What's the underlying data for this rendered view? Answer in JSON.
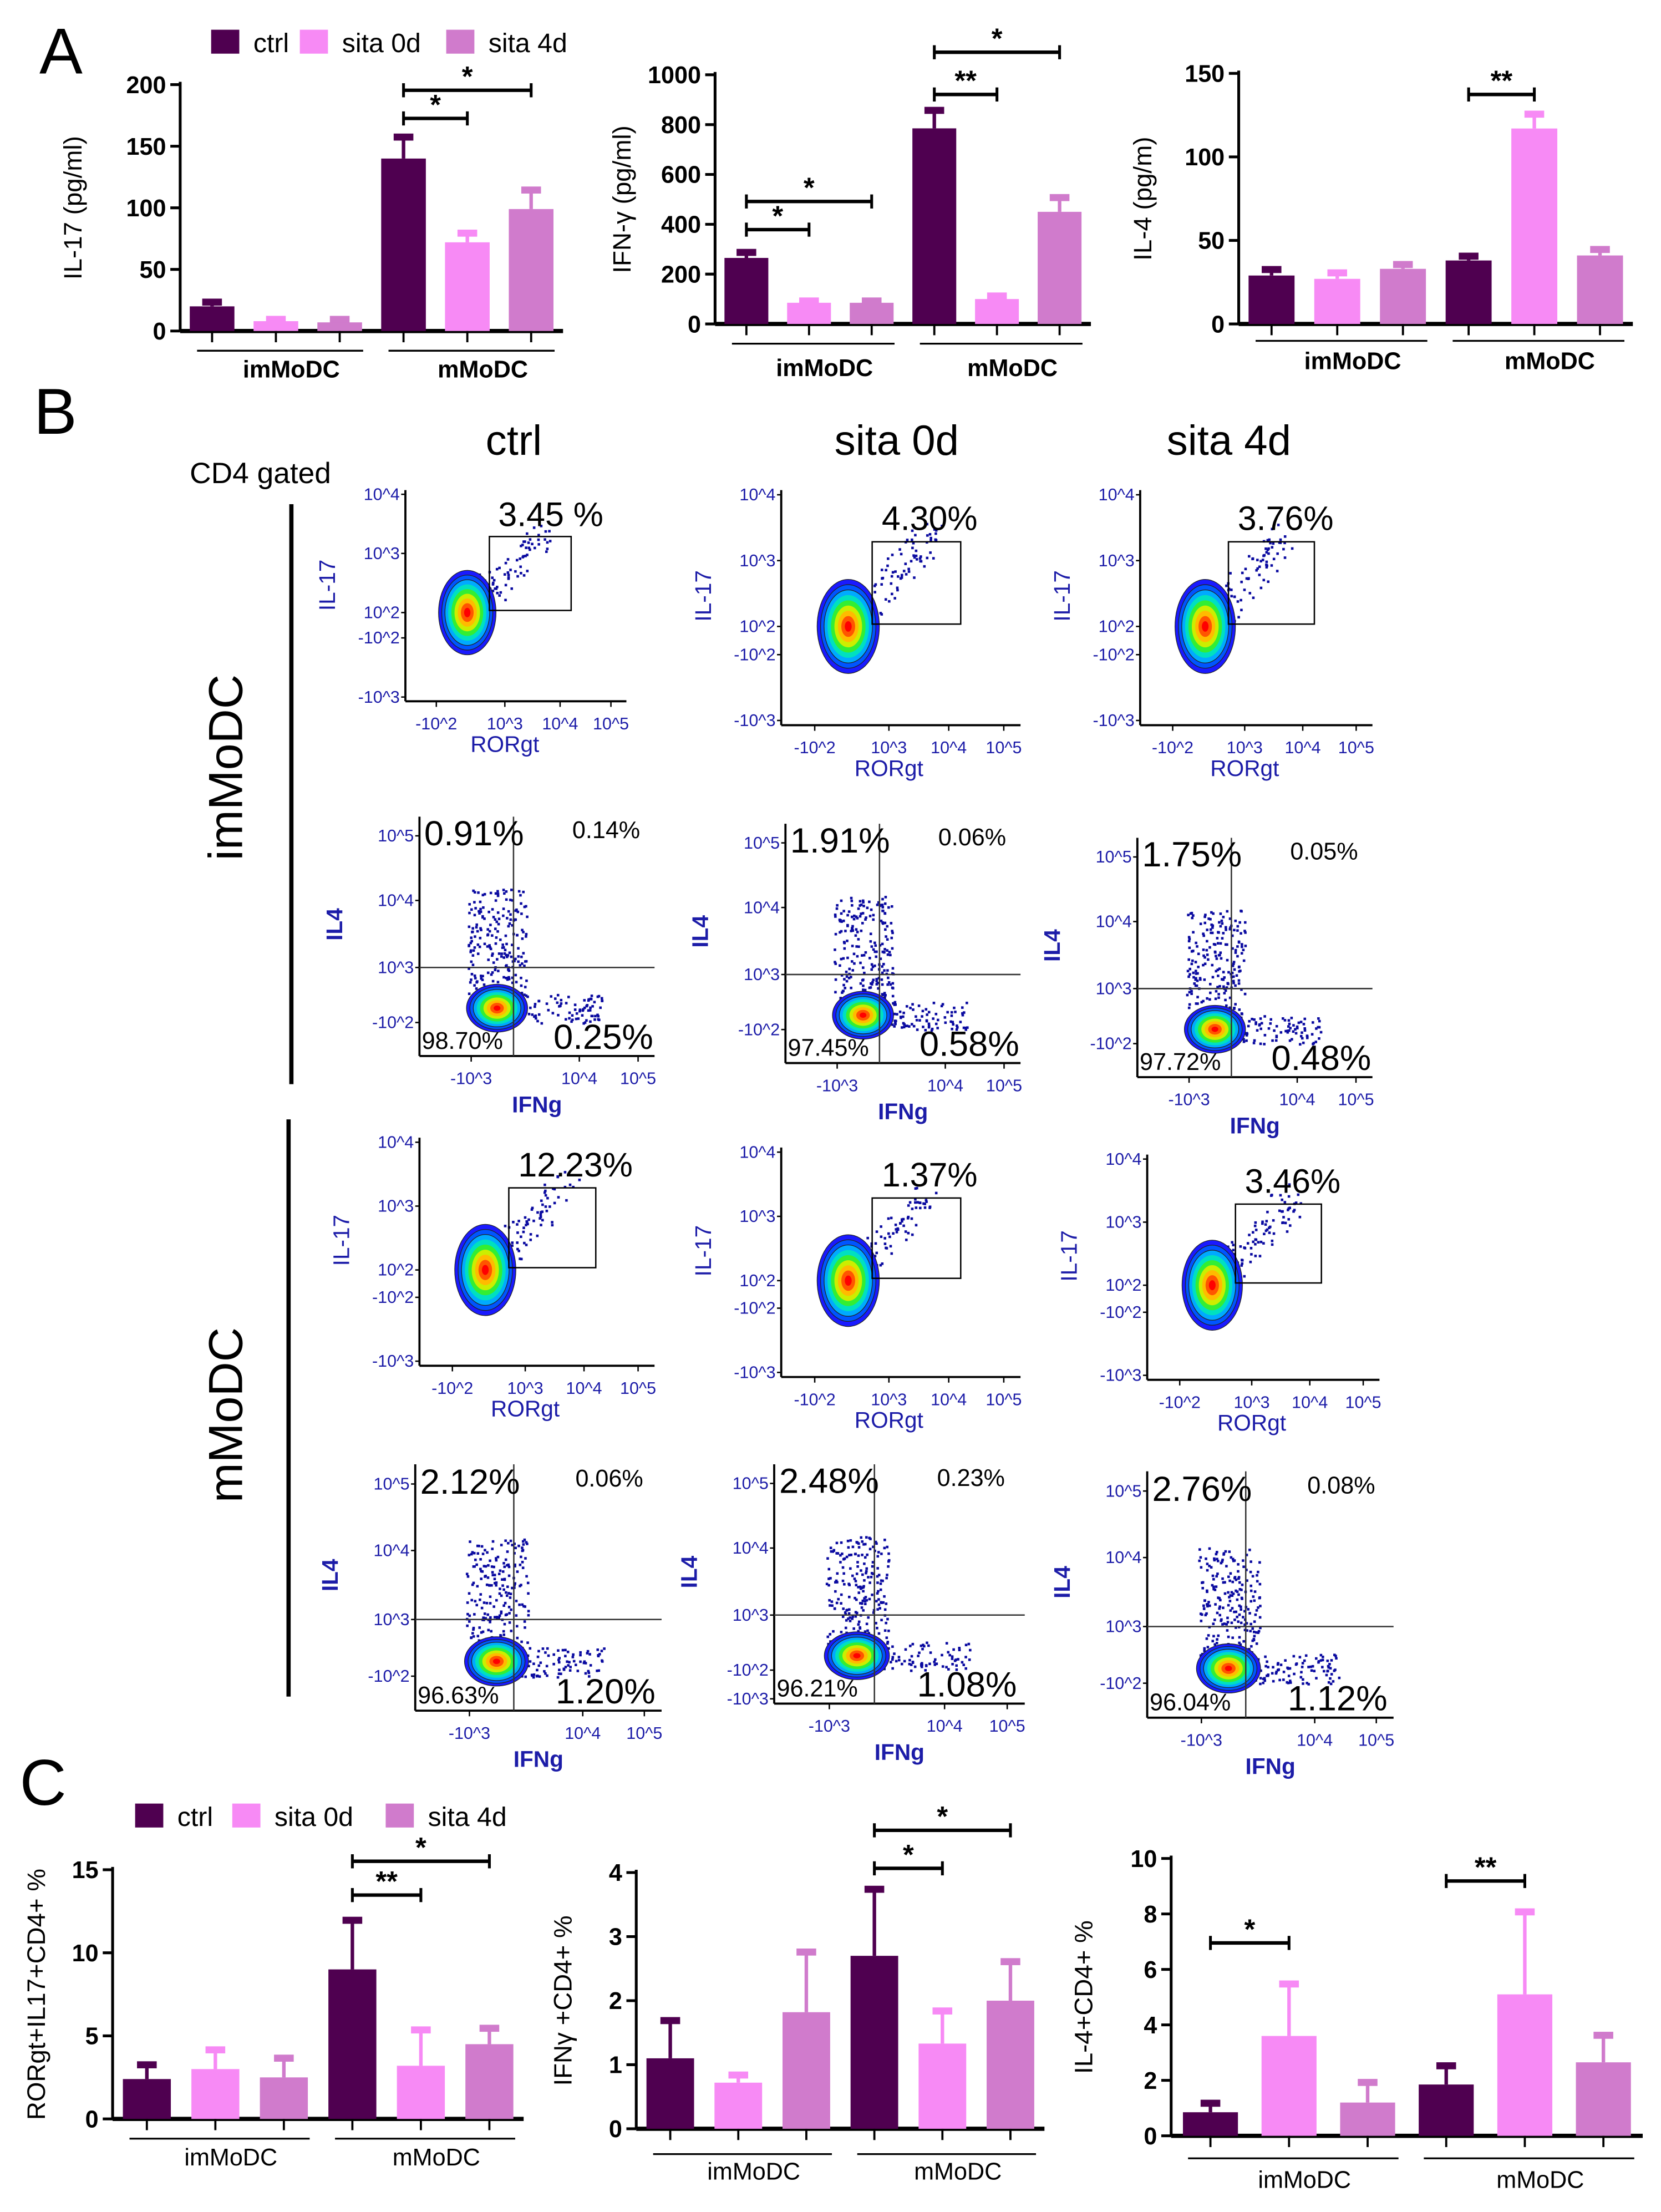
{
  "panel_labels": {
    "a": "A",
    "b": "B",
    "c": "C"
  },
  "legend": {
    "ctrl": "ctrl",
    "sita0": "sita 0d",
    "sita4": "sita 4d"
  },
  "colors": {
    "ctrl": "#4f0050",
    "sita0": "#f78af5",
    "sita4": "#d07bcc",
    "flow_axis_text": "#1c1ca8",
    "dots": "#0a0aa0"
  },
  "chart_data": [
    {
      "type": "bar",
      "panel": "A",
      "ylabel": "IL-17 (pg/ml)",
      "ylim": [
        0,
        200
      ],
      "yticks": [
        "0",
        "50",
        "100",
        "150",
        "200"
      ],
      "groups": [
        "imMoDC",
        "mMoDC"
      ],
      "series": [
        {
          "name": "ctrl",
          "values": [
            20,
            140
          ],
          "errors": [
            4,
            18
          ]
        },
        {
          "name": "sita 0d",
          "values": [
            8,
            72
          ],
          "errors": [
            2,
            8
          ]
        },
        {
          "name": "sita 4d",
          "values": [
            7,
            99
          ],
          "errors": [
            3,
            16
          ]
        }
      ],
      "significance": [
        {
          "group": "mMoDC",
          "from": "ctrl",
          "to": "sita 0d",
          "label": "*"
        },
        {
          "group": "mMoDC",
          "from": "ctrl",
          "to": "sita 4d",
          "label": "*"
        }
      ]
    },
    {
      "type": "bar",
      "panel": "A",
      "ylabel": "IFN-γ (pg/ml)",
      "ylim": [
        0,
        1000
      ],
      "yticks": [
        "0",
        "200",
        "400",
        "600",
        "800",
        "1000"
      ],
      "groups": [
        "imMoDC",
        "mMoDC"
      ],
      "series": [
        {
          "name": "ctrl",
          "values": [
            265,
            785
          ],
          "errors": [
            25,
            75
          ]
        },
        {
          "name": "sita 0d",
          "values": [
            85,
            100
          ],
          "errors": [
            10,
            15
          ]
        },
        {
          "name": "sita 4d",
          "values": [
            85,
            450
          ],
          "errors": [
            10,
            60
          ]
        }
      ],
      "significance": [
        {
          "group": "imMoDC",
          "from": "ctrl",
          "to": "sita 0d",
          "label": "*"
        },
        {
          "group": "imMoDC",
          "from": "ctrl",
          "to": "sita 4d",
          "label": "*"
        },
        {
          "group": "mMoDC",
          "from": "ctrl",
          "to": "sita 0d",
          "label": "**"
        },
        {
          "group": "mMoDC",
          "from": "ctrl",
          "to": "sita 4d",
          "label": "*"
        }
      ]
    },
    {
      "type": "bar",
      "panel": "A",
      "ylabel": "IL-4 (pg/m)",
      "ylim": [
        0,
        150
      ],
      "yticks": [
        "0",
        "50",
        "100",
        "150"
      ],
      "groups": [
        "imMoDC",
        "mMoDC"
      ],
      "series": [
        {
          "name": "ctrl",
          "values": [
            29,
            38
          ],
          "errors": [
            4,
            3
          ]
        },
        {
          "name": "sita 0d",
          "values": [
            27,
            117
          ],
          "errors": [
            4,
            9
          ]
        },
        {
          "name": "sita 4d",
          "values": [
            33,
            41
          ],
          "errors": [
            3,
            4
          ]
        }
      ],
      "significance": [
        {
          "group": "mMoDC",
          "from": "ctrl",
          "to": "sita 0d",
          "label": "**"
        }
      ]
    },
    {
      "type": "bar",
      "panel": "C",
      "ylabel": "RORgt+IL17+CD4+ %",
      "ylim": [
        0,
        15
      ],
      "yticks": [
        "0",
        "5",
        "10",
        "15"
      ],
      "groups": [
        "imMoDC",
        "mMoDC"
      ],
      "series": [
        {
          "name": "ctrl",
          "values": [
            2.4,
            9.0
          ],
          "errors": [
            0.9,
            3.0
          ]
        },
        {
          "name": "sita 0d",
          "values": [
            3.0,
            3.2
          ],
          "errors": [
            1.2,
            2.2
          ]
        },
        {
          "name": "sita 4d",
          "values": [
            2.5,
            4.5
          ],
          "errors": [
            1.2,
            1.0
          ]
        }
      ],
      "significance": [
        {
          "group": "mMoDC",
          "from": "ctrl",
          "to": "sita 0d",
          "label": "**"
        },
        {
          "group": "mMoDC",
          "from": "ctrl",
          "to": "sita 4d",
          "label": "*"
        }
      ]
    },
    {
      "type": "bar",
      "panel": "C",
      "ylabel": "IFNγ +CD4+ %",
      "ylim": [
        0,
        4
      ],
      "yticks": [
        "0",
        "1",
        "2",
        "3",
        "4"
      ],
      "groups": [
        "imMoDC",
        "mMoDC"
      ],
      "series": [
        {
          "name": "ctrl",
          "values": [
            1.1,
            2.7
          ],
          "errors": [
            0.6,
            1.05
          ]
        },
        {
          "name": "sita 0d",
          "values": [
            0.72,
            1.33
          ],
          "errors": [
            0.13,
            0.52
          ]
        },
        {
          "name": "sita 4d",
          "values": [
            1.82,
            2.0
          ],
          "errors": [
            0.95,
            0.62
          ]
        }
      ],
      "significance": [
        {
          "group": "mMoDC",
          "from": "ctrl",
          "to": "sita 0d",
          "label": "*"
        },
        {
          "group": "mMoDC",
          "from": "ctrl",
          "to": "sita 4d",
          "label": "*"
        }
      ]
    },
    {
      "type": "bar",
      "panel": "C",
      "ylabel": "IL-4+CD4+ %",
      "ylim": [
        0,
        10
      ],
      "yticks": [
        "0",
        "2",
        "4",
        "6",
        "8",
        "10"
      ],
      "groups": [
        "imMoDC",
        "mMoDC"
      ],
      "series": [
        {
          "name": "ctrl",
          "values": [
            0.85,
            1.85
          ],
          "errors": [
            0.35,
            0.7
          ]
        },
        {
          "name": "sita 0d",
          "values": [
            3.6,
            5.1
          ],
          "errors": [
            1.9,
            3.0
          ]
        },
        {
          "name": "sita 4d",
          "values": [
            1.2,
            2.65
          ],
          "errors": [
            0.75,
            1.0
          ]
        }
      ],
      "significance": [
        {
          "group": "imMoDC",
          "from": "ctrl",
          "to": "sita 0d",
          "label": "*"
        },
        {
          "group": "mMoDC",
          "from": "ctrl",
          "to": "sita 0d",
          "label": "**"
        }
      ]
    }
  ],
  "flow": {
    "gating": "CD4 gated",
    "columns": [
      "ctrl",
      "sita 0d",
      "sita 4d"
    ],
    "rows": [
      "imMoDC",
      "mMoDC"
    ],
    "plots": [
      {
        "row": "imMoDC",
        "column": "ctrl",
        "kind": "gate",
        "xlabel": "RORgt",
        "ylabel": "IL-17",
        "percent": "3.45 %",
        "xticks": [
          "-10^2",
          "10^3",
          "10^4",
          "10^5"
        ],
        "yticks": [
          "10^4",
          "10^3",
          "10^2",
          "-10^2",
          "-10^3"
        ]
      },
      {
        "row": "imMoDC",
        "column": "sita 0d",
        "kind": "gate",
        "xlabel": "RORgt",
        "ylabel": "IL-17",
        "percent": "4.30%",
        "xticks": [
          "-10^2",
          "10^3",
          "10^4",
          "10^5"
        ],
        "yticks": [
          "10^4",
          "10^3",
          "10^2",
          "-10^2",
          "-10^3"
        ]
      },
      {
        "row": "imMoDC",
        "column": "sita 4d",
        "kind": "gate",
        "xlabel": "RORgt",
        "ylabel": "IL-17",
        "percent": "3.76%",
        "xticks": [
          "-10^2",
          "10^3",
          "10^4",
          "10^5"
        ],
        "yticks": [
          "10^4",
          "10^3",
          "10^2",
          "-10^2",
          "-10^3"
        ]
      },
      {
        "row": "imMoDC",
        "column": "ctrl",
        "kind": "quadrant",
        "xlabel": "IFNg",
        "ylabel": "IL4",
        "ul": "0.91%",
        "ur": "0.14%",
        "ll": "98.70%",
        "lr": "0.25%",
        "xticks": [
          "-10^3",
          "10^4",
          "10^5"
        ],
        "yticks": [
          "10^5",
          "10^4",
          "10^3",
          "-10^2"
        ]
      },
      {
        "row": "imMoDC",
        "column": "sita 0d",
        "kind": "quadrant",
        "xlabel": "IFNg",
        "ylabel": "IL4",
        "ul": "1.91%",
        "ur": "0.06%",
        "ll": "97.45%",
        "lr": "0.58%",
        "xticks": [
          "-10^3",
          "10^4",
          "10^5"
        ],
        "yticks": [
          "10^5",
          "10^4",
          "10^3",
          "-10^2"
        ]
      },
      {
        "row": "imMoDC",
        "column": "sita 4d",
        "kind": "quadrant",
        "xlabel": "IFNg",
        "ylabel": "IL4",
        "ul": "1.75%",
        "ur": "0.05%",
        "ll": "97.72%",
        "lr": "0.48%",
        "xticks": [
          "-10^3",
          "10^4",
          "10^5"
        ],
        "yticks": [
          "10^5",
          "10^4",
          "10^3",
          "-10^2"
        ]
      },
      {
        "row": "mMoDC",
        "column": "ctrl",
        "kind": "gate",
        "xlabel": "RORgt",
        "ylabel": "IL-17",
        "percent": "12.23%",
        "xticks": [
          "-10^2",
          "10^3",
          "10^4",
          "10^5"
        ],
        "yticks": [
          "10^4",
          "10^3",
          "10^2",
          "-10^2",
          "-10^3"
        ]
      },
      {
        "row": "mMoDC",
        "column": "sita 0d",
        "kind": "gate",
        "xlabel": "RORgt",
        "ylabel": "IL-17",
        "percent": "1.37%",
        "xticks": [
          "-10^2",
          "10^3",
          "10^4",
          "10^5"
        ],
        "yticks": [
          "10^4",
          "10^3",
          "10^2",
          "-10^2",
          "-10^3"
        ]
      },
      {
        "row": "mMoDC",
        "column": "sita 4d",
        "kind": "gate",
        "xlabel": "RORgt",
        "ylabel": "IL-17",
        "percent": "3.46%",
        "xticks": [
          "-10^2",
          "10^3",
          "10^4",
          "10^5"
        ],
        "yticks": [
          "10^4",
          "10^3",
          "10^2",
          "-10^2",
          "-10^3"
        ]
      },
      {
        "row": "mMoDC",
        "column": "ctrl",
        "kind": "quadrant",
        "xlabel": "IFNg",
        "ylabel": "IL4",
        "ul": "2.12%",
        "ur": "0.06%",
        "ll": "96.63%",
        "lr": "1.20%",
        "xticks": [
          "-10^3",
          "10^4",
          "10^5"
        ],
        "yticks": [
          "10^5",
          "10^4",
          "10^3",
          "-10^2"
        ]
      },
      {
        "row": "mMoDC",
        "column": "sita 0d",
        "kind": "quadrant",
        "xlabel": "IFNg",
        "ylabel": "IL4",
        "ul": "2.48%",
        "ur": "0.23%",
        "ll": "96.21%",
        "lr": "1.08%",
        "xticks": [
          "-10^3",
          "10^4",
          "10^5"
        ],
        "yticks": [
          "10^5",
          "10^4",
          "10^3",
          "-10^2",
          "-10^3"
        ]
      },
      {
        "row": "mMoDC",
        "column": "sita 4d",
        "kind": "quadrant",
        "xlabel": "IFNg",
        "ylabel": "IL4",
        "ul": "2.76%",
        "ur": "0.08%",
        "ll": "96.04%",
        "lr": "1.12%",
        "xticks": [
          "-10^3",
          "10^4",
          "10^5"
        ],
        "yticks": [
          "10^5",
          "10^4",
          "10^3",
          "-10^2"
        ]
      }
    ]
  }
}
